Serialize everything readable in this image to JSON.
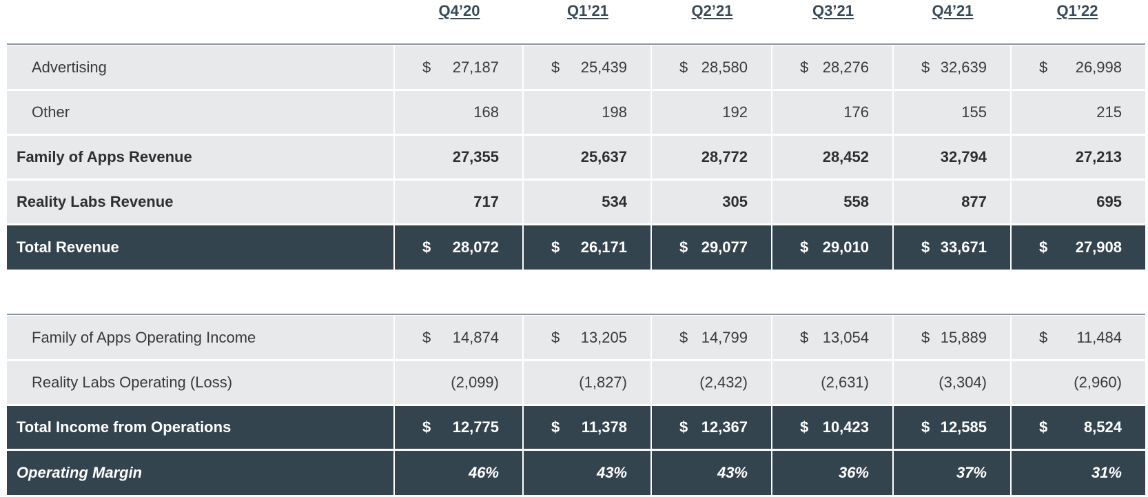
{
  "columns": [
    "Q4’20",
    "Q1’21",
    "Q2’21",
    "Q3’21",
    "Q4’21",
    "Q1’22"
  ],
  "rows": [
    {
      "label": "Advertising",
      "values": [
        "27,187",
        "25,439",
        "28,580",
        "28,276",
        "32,639",
        "26,998"
      ],
      "dollar": [
        "$",
        "$",
        "$",
        "$",
        "$",
        "$"
      ]
    },
    {
      "label": "Other",
      "values": [
        "168",
        "198",
        "192",
        "176",
        "155",
        "215"
      ]
    },
    {
      "label": "Family of Apps Revenue",
      "values": [
        "27,355",
        "25,637",
        "28,772",
        "28,452",
        "32,794",
        "27,213"
      ]
    },
    {
      "label": "Reality Labs Revenue",
      "values": [
        "717",
        "534",
        "305",
        "558",
        "877",
        "695"
      ]
    },
    {
      "label": "Total Revenue",
      "values": [
        "28,072",
        "26,171",
        "29,077",
        "29,010",
        "33,671",
        "27,908"
      ],
      "dollar": [
        "$",
        "$",
        "$",
        "$",
        "$",
        "$"
      ]
    },
    {
      "label": "Family of Apps Operating Income",
      "values": [
        "14,874",
        "13,205",
        "14,799",
        "13,054",
        "15,889",
        "11,484"
      ],
      "dollar": [
        "$",
        "$",
        "$",
        "$",
        "$",
        "$"
      ]
    },
    {
      "label": "Reality Labs Operating (Loss)",
      "values": [
        "(2,099)",
        "(1,827)",
        "(2,432)",
        "(2,631)",
        "(3,304)",
        "(2,960)"
      ]
    },
    {
      "label": "Total Income from Operations",
      "values": [
        "12,775",
        "11,378",
        "12,367",
        "10,423",
        "12,585",
        "8,524"
      ],
      "dollar": [
        "$",
        "$",
        "$",
        "$",
        "$",
        "$"
      ]
    },
    {
      "label": "Operating Margin",
      "values": [
        "46%",
        "43%",
        "43%",
        "36%",
        "37%",
        "31%"
      ]
    }
  ]
}
